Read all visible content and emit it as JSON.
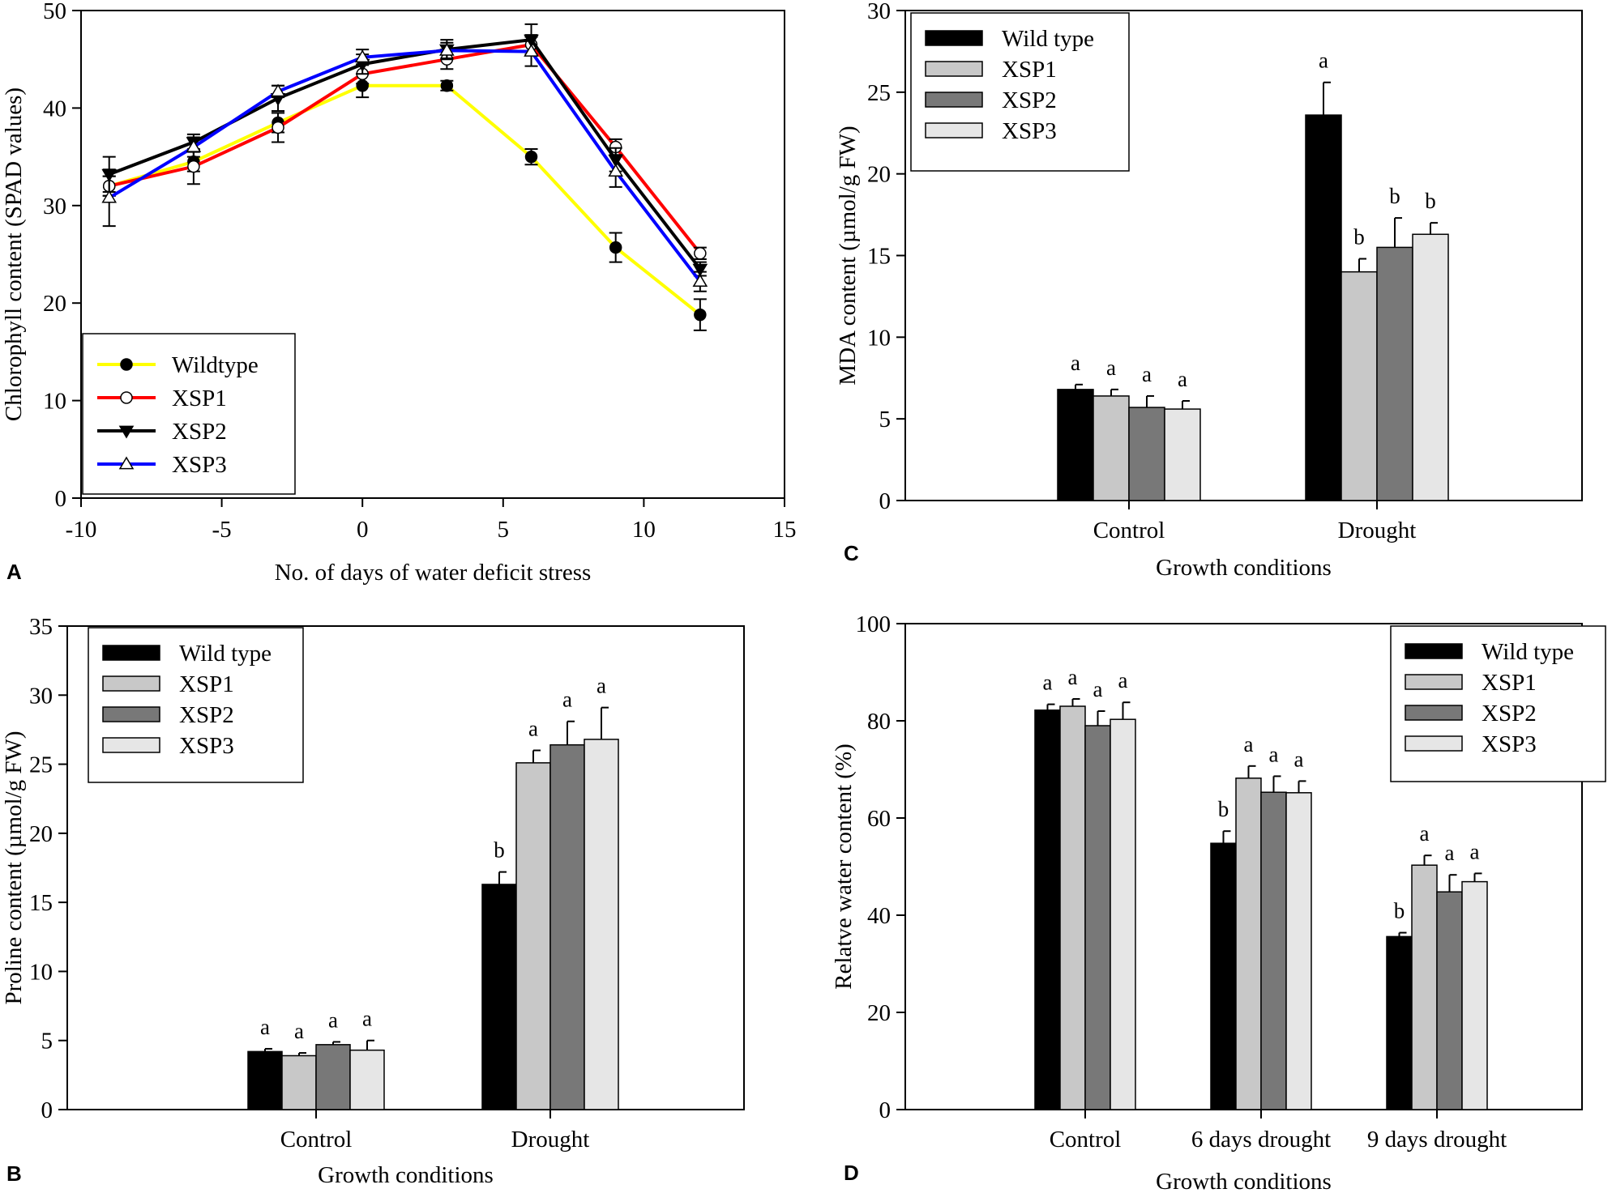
{
  "chart_data": [
    {
      "id": "A",
      "type": "line",
      "panel_label": "A",
      "title": "",
      "xlabel": "No. of days of water deficit stress",
      "ylabel": "Chlorophyll content (SPAD values)",
      "xlim": [
        -10,
        15
      ],
      "ylim": [
        0,
        50
      ],
      "xticks": [
        -10,
        -5,
        0,
        5,
        10,
        15
      ],
      "yticks": [
        0,
        10,
        20,
        30,
        40,
        50
      ],
      "legend_position": "bottom-left",
      "x": [
        -9,
        -6,
        -3,
        0,
        3,
        6,
        9,
        12
      ],
      "series": [
        {
          "name": "Wildtype",
          "color": "#ffff00",
          "marker": "filled-circle",
          "values": [
            32,
            34.5,
            38.5,
            42.3,
            42.3,
            35,
            25.7,
            18.8
          ],
          "errors": [
            1.0,
            1.0,
            1.0,
            1.2,
            0.5,
            0.8,
            1.5,
            1.6
          ]
        },
        {
          "name": "XSP1",
          "color": "#ff0000",
          "marker": "open-circle",
          "values": [
            32,
            34,
            38,
            43.5,
            45,
            46.5,
            36,
            25.1
          ],
          "errors": [
            1.0,
            1.8,
            1.5,
            1.0,
            1.0,
            1.0,
            0.8,
            0.6
          ]
        },
        {
          "name": "XSP2",
          "color": "#000000",
          "marker": "filled-triangle-down",
          "values": [
            33.2,
            36.5,
            41,
            44.5,
            46,
            47,
            34.7,
            23.5
          ],
          "errors": [
            1.8,
            0.8,
            1.3,
            1.0,
            1.0,
            1.6,
            1.2,
            0.7
          ]
        },
        {
          "name": "XSP3",
          "color": "#0000ff",
          "marker": "open-triangle-up",
          "values": [
            30.8,
            36,
            41.7,
            45.2,
            45.9,
            45.8,
            33.5,
            22.2
          ],
          "errors": [
            2.9,
            1.0,
            0.6,
            0.8,
            0.8,
            1.5,
            1.6,
            1.0
          ]
        }
      ]
    },
    {
      "id": "B",
      "type": "bar",
      "panel_label": "B",
      "title": "",
      "xlabel": "Growth conditions",
      "ylabel": "Proline content (µmol/g FW)",
      "ylim": [
        0,
        35
      ],
      "yticks": [
        0,
        5,
        10,
        15,
        20,
        25,
        30,
        35
      ],
      "legend_position": "top-left",
      "categories": [
        "Control",
        "Drought"
      ],
      "series": [
        {
          "name": "Wild type",
          "color": "#000000",
          "values": [
            4.2,
            16.3
          ],
          "errors": [
            0.2,
            0.9
          ],
          "letters": [
            "a",
            "b"
          ]
        },
        {
          "name": "XSP1",
          "color": "#c8c8c8",
          "values": [
            3.9,
            25.1
          ],
          "errors": [
            0.2,
            0.9
          ],
          "letters": [
            "a",
            "a"
          ]
        },
        {
          "name": "XSP2",
          "color": "#787878",
          "values": [
            4.7,
            26.4
          ],
          "errors": [
            0.2,
            1.7
          ],
          "letters": [
            "a",
            "a"
          ]
        },
        {
          "name": "XSP3",
          "color": "#e6e6e6",
          "values": [
            4.3,
            26.8
          ],
          "errors": [
            0.7,
            2.3
          ],
          "letters": [
            "a",
            "a"
          ]
        }
      ]
    },
    {
      "id": "C",
      "type": "bar",
      "panel_label": "C",
      "title": "",
      "xlabel": "Growth conditions",
      "ylabel": "MDA content (µmol/g FW)",
      "ylim": [
        0,
        30
      ],
      "yticks": [
        0,
        5,
        10,
        15,
        20,
        25,
        30
      ],
      "legend_position": "top-left",
      "categories": [
        "Control",
        "Drought"
      ],
      "series": [
        {
          "name": "Wild type",
          "color": "#000000",
          "values": [
            6.8,
            23.6
          ],
          "errors": [
            0.3,
            2.0
          ],
          "letters": [
            "a",
            "a"
          ]
        },
        {
          "name": "XSP1",
          "color": "#c8c8c8",
          "values": [
            6.4,
            14.0
          ],
          "errors": [
            0.4,
            0.8
          ],
          "letters": [
            "a",
            "b"
          ]
        },
        {
          "name": "XSP2",
          "color": "#787878",
          "values": [
            5.7,
            15.5
          ],
          "errors": [
            0.7,
            1.8
          ],
          "letters": [
            "a",
            "b"
          ]
        },
        {
          "name": "XSP3",
          "color": "#e6e6e6",
          "values": [
            5.6,
            16.3
          ],
          "errors": [
            0.5,
            0.7
          ],
          "letters": [
            "a",
            "b"
          ]
        }
      ]
    },
    {
      "id": "D",
      "type": "bar",
      "panel_label": "D",
      "title": "",
      "xlabel": "Growth conditions",
      "ylabel": "Relatve water content (%)",
      "ylim": [
        0,
        100
      ],
      "yticks": [
        0,
        20,
        40,
        60,
        80,
        100
      ],
      "legend_position": "top-right",
      "categories": [
        "Control",
        "6 days drought",
        "9 days drought"
      ],
      "series": [
        {
          "name": "Wild type",
          "color": "#000000",
          "values": [
            82.2,
            54.8,
            35.6
          ],
          "errors": [
            1.2,
            2.5,
            0.8
          ],
          "letters": [
            "a",
            "b",
            "b"
          ]
        },
        {
          "name": "XSP1",
          "color": "#c8c8c8",
          "values": [
            83.0,
            68.2,
            50.3
          ],
          "errors": [
            1.5,
            2.5,
            2.0
          ],
          "letters": [
            "a",
            "a",
            "a"
          ]
        },
        {
          "name": "XSP2",
          "color": "#787878",
          "values": [
            79.0,
            65.3,
            44.8
          ],
          "errors": [
            3.0,
            3.3,
            3.5
          ],
          "letters": [
            "a",
            "a",
            "a"
          ]
        },
        {
          "name": "XSP3",
          "color": "#e6e6e6",
          "values": [
            80.3,
            65.2,
            46.9
          ],
          "errors": [
            3.5,
            2.4,
            1.7
          ],
          "letters": [
            "a",
            "a",
            "a"
          ]
        }
      ]
    }
  ]
}
